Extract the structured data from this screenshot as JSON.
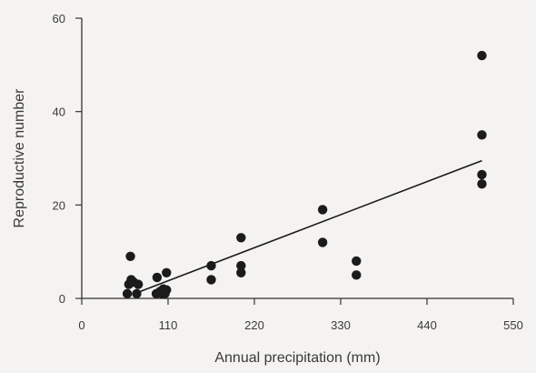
{
  "chart_data": {
    "type": "scatter",
    "xlabel": "Annual precipitation (mm)",
    "ylabel": "Reproductive number",
    "xlim": [
      0,
      550
    ],
    "ylim": [
      0,
      60
    ],
    "xticks": [
      0,
      110,
      220,
      330,
      440,
      550
    ],
    "yticks": [
      0,
      20,
      40,
      60
    ],
    "grid": false,
    "series": [
      {
        "points": [
          [
            58,
            1
          ],
          [
            60,
            3
          ],
          [
            62,
            9
          ],
          [
            63,
            4
          ],
          [
            66,
            3.5
          ],
          [
            70,
            1
          ],
          [
            72,
            3
          ],
          [
            95,
            1
          ],
          [
            96,
            4.5
          ],
          [
            100,
            1.5
          ],
          [
            102,
            1
          ],
          [
            104,
            2
          ],
          [
            106,
            1
          ],
          [
            108,
            5.5
          ],
          [
            108,
            1.8
          ],
          [
            165,
            7
          ],
          [
            165,
            4
          ],
          [
            203,
            13
          ],
          [
            203,
            7
          ],
          [
            203,
            5.5
          ],
          [
            307,
            19
          ],
          [
            307,
            12
          ],
          [
            350,
            8
          ],
          [
            350,
            5
          ],
          [
            510,
            52
          ],
          [
            510,
            35
          ],
          [
            510,
            26.5
          ],
          [
            510,
            24.5
          ]
        ]
      }
    ],
    "trendline": {
      "from": [
        70,
        1.2
      ],
      "to": [
        510,
        29.5
      ]
    }
  },
  "colors": {
    "background": "#f4f3f1",
    "axis": "#333333",
    "point": "#1b1b1b",
    "line": "#1b1b1b",
    "text": "#3a3a3a"
  }
}
